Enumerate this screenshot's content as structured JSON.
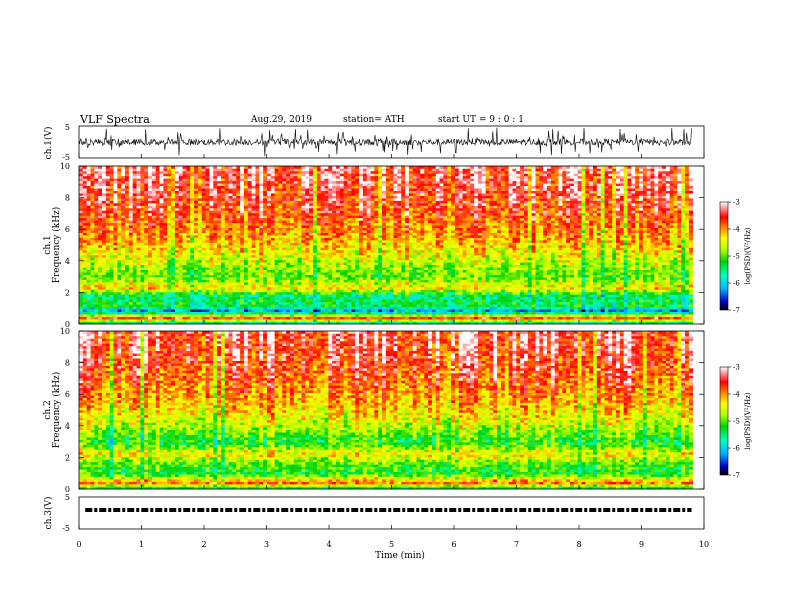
{
  "header": {
    "title": "VLF Spectra",
    "date": "Aug.29, 2019",
    "station": "station= ATH",
    "start": "start UT =  9 : 0 : 1"
  },
  "chart_data": [
    {
      "type": "line",
      "panel": "ch1-waveform",
      "ylabel": "ch.1(V)",
      "ytick_labels": [
        "5",
        "-5"
      ],
      "ylim": [
        -5,
        5
      ],
      "xlim": [
        0,
        10
      ],
      "trace": {
        "mean": 0,
        "typical_amplitude": 1,
        "spike_amplitude": 4.5,
        "t_end": 9.8
      }
    },
    {
      "type": "heatmap",
      "panel": "ch1-spectrogram",
      "ylabel": "ch.1\nFrequency (kHz)",
      "ytick_labels": [
        "0",
        "2",
        "4",
        "6",
        "8",
        "10"
      ],
      "ylim": [
        0,
        10
      ],
      "xlim": [
        0,
        10
      ],
      "colorbar": {
        "label": "log(PSD)(V²/Hz)",
        "range": [
          -7,
          -3
        ],
        "tick_labels": [
          "-3",
          "-4",
          "-5",
          "-6",
          "-7"
        ]
      },
      "profile": [
        {
          "f": 0.0,
          "v": -6.0
        },
        {
          "f": 0.4,
          "v": -3.5
        },
        {
          "f": 0.8,
          "v": -6.3
        },
        {
          "f": 1.2,
          "v": -5.3
        },
        {
          "f": 1.8,
          "v": -5.5
        },
        {
          "f": 2.3,
          "v": -4.3
        },
        {
          "f": 3.0,
          "v": -5.0
        },
        {
          "f": 4.0,
          "v": -4.6
        },
        {
          "f": 5.0,
          "v": -4.2
        },
        {
          "f": 6.0,
          "v": -3.9
        },
        {
          "f": 8.0,
          "v": -3.5
        },
        {
          "f": 10.0,
          "v": -3.3
        }
      ]
    },
    {
      "type": "heatmap",
      "panel": "ch2-spectrogram",
      "ylabel": "ch.2\nFrequency (kHz)",
      "ytick_labels": [
        "0",
        "2",
        "4",
        "6",
        "8",
        "10"
      ],
      "ylim": [
        0,
        10
      ],
      "xlim": [
        0,
        10
      ],
      "colorbar": {
        "label": "log(PSD)(V²/Hz)",
        "range": [
          -7,
          -3
        ],
        "tick_labels": [
          "-3",
          "-4",
          "-5",
          "-6",
          "-7"
        ]
      },
      "profile": [
        {
          "f": 0.0,
          "v": -5.6
        },
        {
          "f": 0.4,
          "v": -3.8
        },
        {
          "f": 1.0,
          "v": -5.2
        },
        {
          "f": 1.6,
          "v": -5.0
        },
        {
          "f": 2.2,
          "v": -4.3
        },
        {
          "f": 3.0,
          "v": -5.2
        },
        {
          "f": 4.0,
          "v": -4.6
        },
        {
          "f": 5.0,
          "v": -4.2
        },
        {
          "f": 6.0,
          "v": -3.9
        },
        {
          "f": 8.0,
          "v": -3.5
        },
        {
          "f": 10.0,
          "v": -3.3
        }
      ]
    },
    {
      "type": "line",
      "panel": "ch3-waveform",
      "ylabel": "ch.3(V)",
      "ytick_labels": [
        "5",
        "-5"
      ],
      "ylim": [
        -5,
        5
      ],
      "xlim": [
        0,
        10
      ],
      "trace": {
        "level": 0,
        "t_end": 9.8
      }
    }
  ],
  "xaxis": {
    "label": "Time (min)",
    "tick_labels": [
      "0",
      "1",
      "2",
      "3",
      "4",
      "5",
      "6",
      "7",
      "8",
      "9",
      "10"
    ]
  },
  "colors": {
    "scale": [
      "#000000",
      "#0000c8",
      "#00b4ff",
      "#00ffc0",
      "#00d200",
      "#b4ff00",
      "#ffff00",
      "#ff7800",
      "#ff0000",
      "#ffffff"
    ],
    "trace": "#000000"
  }
}
